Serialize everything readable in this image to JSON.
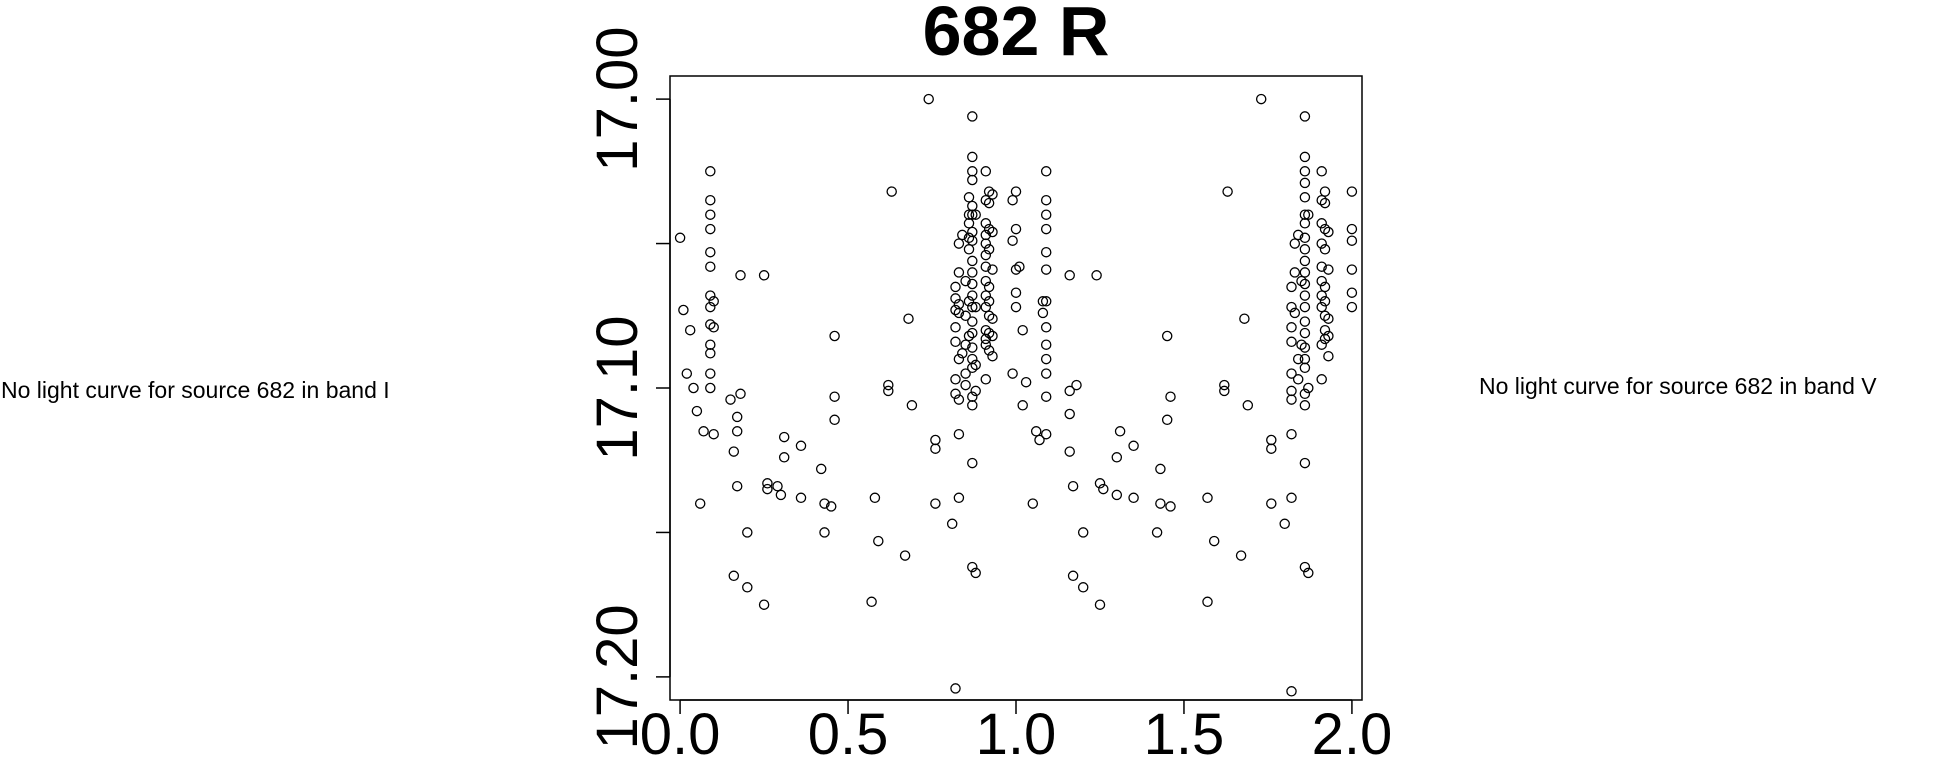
{
  "notes": {
    "left": "No light curve for source 682 in band I",
    "right": "No light curve for source 682 in band V"
  },
  "chart_data": {
    "type": "scatter",
    "title": "682 R",
    "xlabel": "",
    "ylabel": "",
    "xlim": [
      -0.03,
      2.03
    ],
    "ylim": [
      17.208,
      16.992
    ],
    "y_inverted": true,
    "x_ticks": [
      {
        "value": 0.0,
        "label": "0.0"
      },
      {
        "value": 0.5,
        "label": "0.5"
      },
      {
        "value": 1.0,
        "label": "1.0"
      },
      {
        "value": 1.5,
        "label": "1.5"
      },
      {
        "value": 2.0,
        "label": "2.0"
      }
    ],
    "y_ticks": [
      {
        "value": 17.0,
        "label": "17.00"
      },
      {
        "value": 17.05,
        "label": ""
      },
      {
        "value": 17.1,
        "label": "17.10"
      },
      {
        "value": 17.15,
        "label": ""
      },
      {
        "value": 17.2,
        "label": "17.20"
      }
    ],
    "marker": "open-circle",
    "grid": false,
    "points": [
      [
        0.0,
        17.048
      ],
      [
        0.01,
        17.073
      ],
      [
        0.02,
        17.095
      ],
      [
        0.03,
        17.08
      ],
      [
        0.04,
        17.1
      ],
      [
        0.05,
        17.108
      ],
      [
        0.06,
        17.14
      ],
      [
        0.07,
        17.115
      ],
      [
        0.09,
        17.025
      ],
      [
        0.09,
        17.035
      ],
      [
        0.09,
        17.04
      ],
      [
        0.09,
        17.045
      ],
      [
        0.09,
        17.053
      ],
      [
        0.09,
        17.058
      ],
      [
        0.09,
        17.068
      ],
      [
        0.09,
        17.072
      ],
      [
        0.09,
        17.078
      ],
      [
        0.09,
        17.085
      ],
      [
        0.09,
        17.088
      ],
      [
        0.09,
        17.095
      ],
      [
        0.09,
        17.1
      ],
      [
        0.1,
        17.07
      ],
      [
        0.1,
        17.079
      ],
      [
        0.1,
        17.116
      ],
      [
        0.15,
        17.104
      ],
      [
        0.16,
        17.122
      ],
      [
        0.16,
        17.165
      ],
      [
        0.17,
        17.134
      ],
      [
        0.17,
        17.115
      ],
      [
        0.17,
        17.11
      ],
      [
        0.18,
        17.061
      ],
      [
        0.18,
        17.102
      ],
      [
        0.2,
        17.15
      ],
      [
        0.2,
        17.169
      ],
      [
        0.25,
        17.175
      ],
      [
        0.25,
        17.061
      ],
      [
        0.26,
        17.133
      ],
      [
        0.26,
        17.135
      ],
      [
        0.29,
        17.134
      ],
      [
        0.3,
        17.137
      ],
      [
        0.31,
        17.117
      ],
      [
        0.31,
        17.124
      ],
      [
        0.36,
        17.138
      ],
      [
        0.36,
        17.12
      ],
      [
        0.42,
        17.128
      ],
      [
        0.43,
        17.15
      ],
      [
        0.43,
        17.14
      ],
      [
        0.45,
        17.141
      ],
      [
        0.46,
        17.103
      ],
      [
        0.46,
        17.111
      ],
      [
        0.46,
        17.082
      ],
      [
        0.57,
        17.174
      ],
      [
        0.58,
        17.138
      ],
      [
        0.59,
        17.153
      ],
      [
        0.62,
        17.101
      ],
      [
        0.62,
        17.099
      ],
      [
        0.63,
        17.032
      ],
      [
        0.67,
        17.158
      ],
      [
        0.68,
        17.076
      ],
      [
        0.69,
        17.106
      ],
      [
        0.74,
        17.0
      ],
      [
        0.76,
        17.14
      ],
      [
        0.76,
        17.118
      ],
      [
        0.76,
        17.121
      ],
      [
        0.81,
        17.147
      ],
      [
        0.82,
        17.069
      ],
      [
        0.82,
        17.065
      ],
      [
        0.82,
        17.073
      ],
      [
        0.82,
        17.079
      ],
      [
        0.82,
        17.084
      ],
      [
        0.82,
        17.097
      ],
      [
        0.82,
        17.102
      ],
      [
        0.82,
        17.204
      ],
      [
        0.83,
        17.05
      ],
      [
        0.83,
        17.06
      ],
      [
        0.83,
        17.071
      ],
      [
        0.83,
        17.074
      ],
      [
        0.83,
        17.09
      ],
      [
        0.83,
        17.104
      ],
      [
        0.83,
        17.116
      ],
      [
        0.83,
        17.138
      ],
      [
        0.84,
        17.047
      ],
      [
        0.84,
        17.088
      ],
      [
        0.85,
        17.063
      ],
      [
        0.85,
        17.075
      ],
      [
        0.85,
        17.085
      ],
      [
        0.85,
        17.095
      ],
      [
        0.85,
        17.099
      ],
      [
        0.86,
        17.034
      ],
      [
        0.86,
        17.04
      ],
      [
        0.86,
        17.043
      ],
      [
        0.86,
        17.048
      ],
      [
        0.86,
        17.052
      ],
      [
        0.86,
        17.07
      ],
      [
        0.86,
        17.082
      ],
      [
        0.87,
        17.006
      ],
      [
        0.87,
        17.02
      ],
      [
        0.87,
        17.025
      ],
      [
        0.87,
        17.028
      ],
      [
        0.87,
        17.037
      ],
      [
        0.87,
        17.04
      ],
      [
        0.87,
        17.046
      ],
      [
        0.87,
        17.049
      ],
      [
        0.87,
        17.056
      ],
      [
        0.87,
        17.06
      ],
      [
        0.87,
        17.064
      ],
      [
        0.87,
        17.068
      ],
      [
        0.87,
        17.072
      ],
      [
        0.87,
        17.077
      ],
      [
        0.87,
        17.081
      ],
      [
        0.87,
        17.086
      ],
      [
        0.87,
        17.09
      ],
      [
        0.87,
        17.093
      ],
      [
        0.87,
        17.103
      ],
      [
        0.87,
        17.106
      ],
      [
        0.87,
        17.126
      ],
      [
        0.87,
        17.162
      ],
      [
        0.88,
        17.164
      ],
      [
        0.88,
        17.101
      ],
      [
        0.88,
        17.092
      ],
      [
        0.88,
        17.072
      ],
      [
        0.88,
        17.04
      ],
      [
        0.91,
        17.025
      ],
      [
        0.91,
        17.035
      ],
      [
        0.91,
        17.043
      ],
      [
        0.91,
        17.047
      ],
      [
        0.91,
        17.05
      ],
      [
        0.91,
        17.054
      ],
      [
        0.91,
        17.058
      ],
      [
        0.91,
        17.063
      ],
      [
        0.91,
        17.068
      ],
      [
        0.91,
        17.072
      ],
      [
        0.91,
        17.08
      ],
      [
        0.91,
        17.083
      ],
      [
        0.91,
        17.085
      ],
      [
        0.91,
        17.097
      ],
      [
        0.92,
        17.032
      ],
      [
        0.92,
        17.036
      ],
      [
        0.92,
        17.045
      ],
      [
        0.92,
        17.052
      ],
      [
        0.92,
        17.065
      ],
      [
        0.92,
        17.07
      ],
      [
        0.92,
        17.075
      ],
      [
        0.92,
        17.081
      ],
      [
        0.92,
        17.087
      ],
      [
        0.93,
        17.033
      ],
      [
        0.93,
        17.046
      ],
      [
        0.93,
        17.059
      ],
      [
        0.93,
        17.076
      ],
      [
        0.93,
        17.082
      ],
      [
        0.93,
        17.089
      ],
      [
        0.99,
        17.095
      ],
      [
        0.99,
        17.035
      ],
      [
        0.99,
        17.049
      ],
      [
        1.0,
        17.032
      ],
      [
        1.0,
        17.045
      ],
      [
        1.0,
        17.059
      ],
      [
        1.0,
        17.067
      ],
      [
        1.0,
        17.072
      ],
      [
        1.01,
        17.058
      ],
      [
        1.02,
        17.08
      ],
      [
        1.02,
        17.106
      ],
      [
        1.03,
        17.098
      ],
      [
        1.05,
        17.14
      ],
      [
        1.06,
        17.115
      ],
      [
        1.07,
        17.118
      ],
      [
        1.08,
        17.07
      ],
      [
        1.08,
        17.074
      ],
      [
        1.09,
        17.025
      ],
      [
        1.09,
        17.035
      ],
      [
        1.09,
        17.04
      ],
      [
        1.09,
        17.045
      ],
      [
        1.09,
        17.053
      ],
      [
        1.09,
        17.059
      ],
      [
        1.09,
        17.07
      ],
      [
        1.09,
        17.079
      ],
      [
        1.09,
        17.085
      ],
      [
        1.09,
        17.09
      ],
      [
        1.09,
        17.095
      ],
      [
        1.09,
        17.116
      ],
      [
        1.09,
        17.103
      ],
      [
        1.16,
        17.061
      ],
      [
        1.16,
        17.101
      ],
      [
        1.16,
        17.109
      ],
      [
        1.16,
        17.122
      ],
      [
        1.17,
        17.165
      ],
      [
        1.17,
        17.134
      ],
      [
        1.18,
        17.099
      ],
      [
        1.2,
        17.15
      ],
      [
        1.2,
        17.169
      ],
      [
        1.24,
        17.061
      ],
      [
        1.25,
        17.133
      ],
      [
        1.25,
        17.175
      ],
      [
        1.26,
        17.135
      ],
      [
        1.3,
        17.137
      ],
      [
        1.3,
        17.124
      ],
      [
        1.31,
        17.115
      ],
      [
        1.35,
        17.12
      ],
      [
        1.35,
        17.138
      ],
      [
        1.42,
        17.15
      ],
      [
        1.43,
        17.128
      ],
      [
        1.43,
        17.14
      ],
      [
        1.45,
        17.082
      ],
      [
        1.45,
        17.111
      ],
      [
        1.46,
        17.103
      ],
      [
        1.46,
        17.141
      ],
      [
        1.57,
        17.174
      ],
      [
        1.57,
        17.138
      ],
      [
        1.59,
        17.153
      ],
      [
        1.62,
        17.101
      ],
      [
        1.62,
        17.099
      ],
      [
        1.63,
        17.032
      ],
      [
        1.67,
        17.158
      ],
      [
        1.68,
        17.076
      ],
      [
        1.69,
        17.106
      ],
      [
        1.73,
        17.0
      ],
      [
        1.76,
        17.14
      ],
      [
        1.76,
        17.118
      ],
      [
        1.76,
        17.121
      ],
      [
        1.8,
        17.147
      ],
      [
        1.82,
        17.205
      ],
      [
        1.82,
        17.065
      ],
      [
        1.82,
        17.072
      ],
      [
        1.82,
        17.079
      ],
      [
        1.82,
        17.084
      ],
      [
        1.82,
        17.095
      ],
      [
        1.82,
        17.101
      ],
      [
        1.82,
        17.104
      ],
      [
        1.82,
        17.116
      ],
      [
        1.82,
        17.138
      ],
      [
        1.83,
        17.06
      ],
      [
        1.83,
        17.05
      ],
      [
        1.83,
        17.074
      ],
      [
        1.84,
        17.047
      ],
      [
        1.84,
        17.09
      ],
      [
        1.84,
        17.097
      ],
      [
        1.85,
        17.063
      ],
      [
        1.85,
        17.085
      ],
      [
        1.86,
        17.006
      ],
      [
        1.86,
        17.02
      ],
      [
        1.86,
        17.025
      ],
      [
        1.86,
        17.029
      ],
      [
        1.86,
        17.034
      ],
      [
        1.86,
        17.04
      ],
      [
        1.86,
        17.043
      ],
      [
        1.86,
        17.048
      ],
      [
        1.86,
        17.052
      ],
      [
        1.86,
        17.056
      ],
      [
        1.86,
        17.06
      ],
      [
        1.86,
        17.064
      ],
      [
        1.86,
        17.068
      ],
      [
        1.86,
        17.072
      ],
      [
        1.86,
        17.077
      ],
      [
        1.86,
        17.081
      ],
      [
        1.86,
        17.086
      ],
      [
        1.86,
        17.09
      ],
      [
        1.86,
        17.093
      ],
      [
        1.86,
        17.102
      ],
      [
        1.86,
        17.106
      ],
      [
        1.86,
        17.126
      ],
      [
        1.86,
        17.162
      ],
      [
        1.87,
        17.164
      ],
      [
        1.87,
        17.04
      ],
      [
        1.87,
        17.1
      ],
      [
        1.91,
        17.025
      ],
      [
        1.91,
        17.035
      ],
      [
        1.91,
        17.043
      ],
      [
        1.91,
        17.05
      ],
      [
        1.91,
        17.058
      ],
      [
        1.91,
        17.063
      ],
      [
        1.91,
        17.068
      ],
      [
        1.91,
        17.072
      ],
      [
        1.91,
        17.085
      ],
      [
        1.91,
        17.097
      ],
      [
        1.92,
        17.032
      ],
      [
        1.92,
        17.036
      ],
      [
        1.92,
        17.045
      ],
      [
        1.92,
        17.052
      ],
      [
        1.92,
        17.065
      ],
      [
        1.92,
        17.07
      ],
      [
        1.92,
        17.075
      ],
      [
        1.92,
        17.08
      ],
      [
        1.92,
        17.083
      ],
      [
        1.93,
        17.046
      ],
      [
        1.93,
        17.059
      ],
      [
        1.93,
        17.076
      ],
      [
        1.93,
        17.082
      ],
      [
        1.93,
        17.089
      ],
      [
        2.0,
        17.032
      ],
      [
        2.0,
        17.045
      ],
      [
        2.0,
        17.049
      ],
      [
        2.0,
        17.059
      ],
      [
        2.0,
        17.067
      ],
      [
        2.0,
        17.072
      ]
    ]
  }
}
